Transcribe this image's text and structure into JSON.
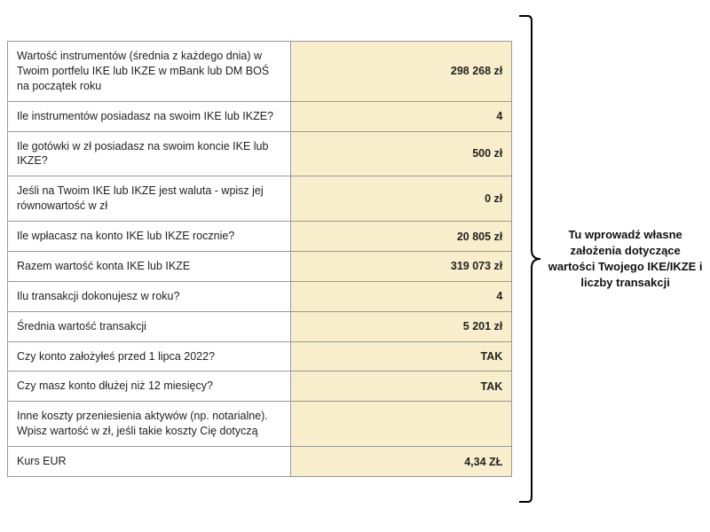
{
  "table": {
    "label_bg": "#ffffff",
    "value_bg": "#f8eecb",
    "border_color": "#999999",
    "rows": [
      {
        "label": "Wartość instrumentów (średnia z każdego dnia) w Twoim portfelu IKE lub IKZE w mBank lub DM BOŚ na początek roku",
        "value": "298 268 zł"
      },
      {
        "label": "Ile instrumentów posiadasz na swoim IKE lub IKZE?",
        "value": "4"
      },
      {
        "label": "Ile gotówki w zł posiadasz na swoim koncie IKE lub IKZE?",
        "value": "500 zł"
      },
      {
        "label": "Jeśli na Twoim IKE lub IKZE jest waluta - wpisz jej równowartość w zł",
        "value": "0 zł"
      },
      {
        "label": "Ile wpłacasz na konto IKE lub IKZE rocznie?",
        "value": "20 805 zł"
      },
      {
        "label": "Razem wartość konta IKE lub IKZE",
        "value": "319 073 zł"
      },
      {
        "label": "Ilu transakcji dokonujesz w roku?",
        "value": "4"
      },
      {
        "label": "Średnia wartość transakcji",
        "value": "5 201 zł"
      },
      {
        "label": "Czy konto założyłeś przed 1 lipca 2022?",
        "value": "TAK"
      },
      {
        "label": "Czy masz konto dłużej niż 12 miesięcy?",
        "value": "TAK"
      },
      {
        "label": "Inne koszty przeniesienia aktywów (np. notarialne). Wpisz wartość w zł, jeśli takie koszty Cię dotyczą",
        "value": ""
      },
      {
        "label": "Kurs EUR",
        "value": "4,34 ZŁ"
      }
    ]
  },
  "annotation": {
    "text": "Tu wprowadź własne założenia dotyczące wartości Twojego IKE/IKZE i liczby transakcji",
    "bracket_color": "#000000",
    "bracket_stroke": 2
  }
}
